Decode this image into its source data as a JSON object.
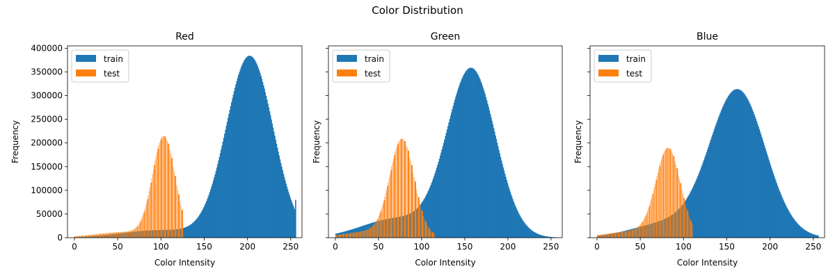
{
  "suptitle": "Color Distribution",
  "colors": {
    "train": "#1f77b4",
    "test": "#ff7f0e"
  },
  "chart_data": [
    {
      "type": "bar",
      "title": "Red",
      "xlabel": "Color Intensity",
      "ylabel": "Frequency",
      "xlim": [
        -8,
        263
      ],
      "ylim": [
        0,
        405000
      ],
      "xticks": [
        0,
        50,
        100,
        150,
        200,
        250
      ],
      "yticks": [
        0,
        50000,
        100000,
        150000,
        200000,
        250000,
        300000,
        350000,
        400000
      ],
      "ytick_labels": [
        "0",
        "50000",
        "100000",
        "150000",
        "200000",
        "250000",
        "300000",
        "350000",
        "400000"
      ],
      "legend": {
        "position": "top-left",
        "entries": [
          "train",
          "test"
        ]
      },
      "grid": false,
      "series": [
        {
          "name": "train",
          "kind": "gaussian-histogram",
          "mean": 202,
          "sd": 27,
          "peak": 383000,
          "tail_mean": 100,
          "tail_sd": 45,
          "tail_peak": 16000,
          "x_range": [
            0,
            255
          ],
          "end_spike": [
            255,
            80000
          ]
        },
        {
          "name": "test",
          "kind": "striped-histogram",
          "mean": 103,
          "sd": 13,
          "peak": 209000,
          "tail_mean": 60,
          "tail_sd": 35,
          "tail_peak": 12000,
          "x_range": [
            0,
            125
          ],
          "stride": 4
        }
      ]
    },
    {
      "type": "bar",
      "title": "Green",
      "xlabel": "Color Intensity",
      "ylabel": "Frequency",
      "xlim": [
        -8,
        263
      ],
      "ylim": [
        0,
        405000
      ],
      "xticks": [
        0,
        50,
        100,
        150,
        200,
        250
      ],
      "yticks": [
        0,
        50000,
        100000,
        150000,
        200000,
        250000,
        300000,
        350000,
        400000
      ],
      "ytick_labels": [],
      "legend": {
        "position": "top-left",
        "entries": [
          "train",
          "test"
        ]
      },
      "grid": false,
      "series": [
        {
          "name": "train",
          "kind": "gaussian-histogram",
          "mean": 157,
          "sd": 28,
          "peak": 355000,
          "tail_mean": 70,
          "tail_sd": 40,
          "tail_peak": 40000,
          "x_range": [
            0,
            255
          ]
        },
        {
          "name": "test",
          "kind": "striped-histogram",
          "mean": 77,
          "sd": 14,
          "peak": 198000,
          "tail_mean": 50,
          "tail_sd": 35,
          "tail_peak": 15000,
          "x_range": [
            0,
            115
          ],
          "stride": 4
        }
      ]
    },
    {
      "type": "bar",
      "title": "Blue",
      "xlabel": "Color Intensity",
      "ylabel": "Frequency",
      "xlim": [
        -8,
        263
      ],
      "ylim": [
        0,
        405000
      ],
      "xticks": [
        0,
        50,
        100,
        150,
        200,
        250
      ],
      "yticks": [
        0,
        50000,
        100000,
        150000,
        200000,
        250000,
        300000,
        350000,
        400000
      ],
      "ytick_labels": [],
      "legend": {
        "position": "top-left",
        "entries": [
          "train",
          "test"
        ]
      },
      "grid": false,
      "series": [
        {
          "name": "train",
          "kind": "gaussian-histogram",
          "mean": 162,
          "sd": 32,
          "peak": 310000,
          "tail_mean": 80,
          "tail_sd": 40,
          "tail_peak": 30000,
          "x_range": [
            0,
            255
          ]
        },
        {
          "name": "test",
          "kind": "striped-histogram",
          "mean": 82,
          "sd": 14,
          "peak": 180000,
          "tail_mean": 50,
          "tail_sd": 35,
          "tail_peak": 15000,
          "x_range": [
            0,
            110
          ],
          "stride": 4
        }
      ]
    }
  ]
}
